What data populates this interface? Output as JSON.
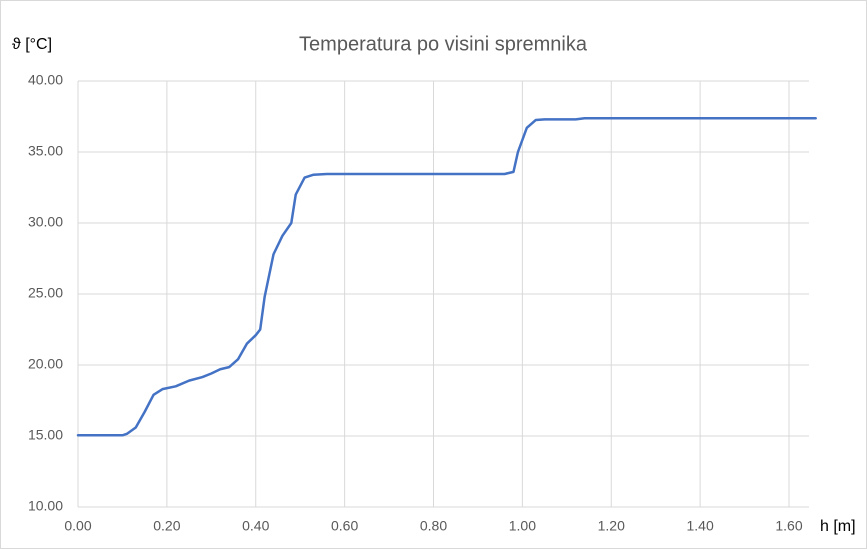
{
  "chart_data": {
    "type": "line",
    "title": "Temperatura  po visini spremnika",
    "y_label": "ϑ [°C]",
    "x_label": "h [m]",
    "x": [
      0,
      0.1,
      0.11,
      0.13,
      0.15,
      0.17,
      0.19,
      0.22,
      0.25,
      0.28,
      0.3,
      0.32,
      0.34,
      0.36,
      0.38,
      0.4,
      0.41,
      0.42,
      0.44,
      0.46,
      0.48,
      0.49,
      0.51,
      0.53,
      0.56,
      0.6,
      0.96,
      0.98,
      0.99,
      1.01,
      1.03,
      1.05,
      1.12,
      1.14,
      1.66
    ],
    "series": [
      {
        "name": "Temperatura",
        "color": "#4472c4",
        "values": [
          15.05,
          15.05,
          15.15,
          15.6,
          16.7,
          17.9,
          18.3,
          18.5,
          18.9,
          19.15,
          19.4,
          19.7,
          19.85,
          20.4,
          21.5,
          22.1,
          22.5,
          24.8,
          27.8,
          29.1,
          30.0,
          32.0,
          33.2,
          33.4,
          33.45,
          33.45,
          33.45,
          33.6,
          35.0,
          36.7,
          37.25,
          37.3,
          37.3,
          37.38,
          37.38
        ]
      }
    ],
    "xlim": [
      0,
      1.6
    ],
    "xticks": [
      {
        "value": 0,
        "label": "0.00"
      },
      {
        "value": 0.2,
        "label": "0.20"
      },
      {
        "value": 0.4,
        "label": "0.40"
      },
      {
        "value": 0.6,
        "label": "0.60"
      },
      {
        "value": 0.8,
        "label": "0.80"
      },
      {
        "value": 1,
        "label": "1.00"
      },
      {
        "value": 1.2,
        "label": "1.20"
      },
      {
        "value": 1.4,
        "label": "1.40"
      },
      {
        "value": 1.6,
        "label": "1.60"
      }
    ],
    "ylim": [
      10,
      40
    ],
    "yticks": [
      {
        "value": 10,
        "label": "10.00"
      },
      {
        "value": 15,
        "label": "15.00"
      },
      {
        "value": 20,
        "label": "20.00"
      },
      {
        "value": 25,
        "label": "25.00"
      },
      {
        "value": 30,
        "label": "30.00"
      },
      {
        "value": 35,
        "label": "35.00"
      },
      {
        "value": 40,
        "label": "40.00"
      }
    ],
    "grid": true
  }
}
